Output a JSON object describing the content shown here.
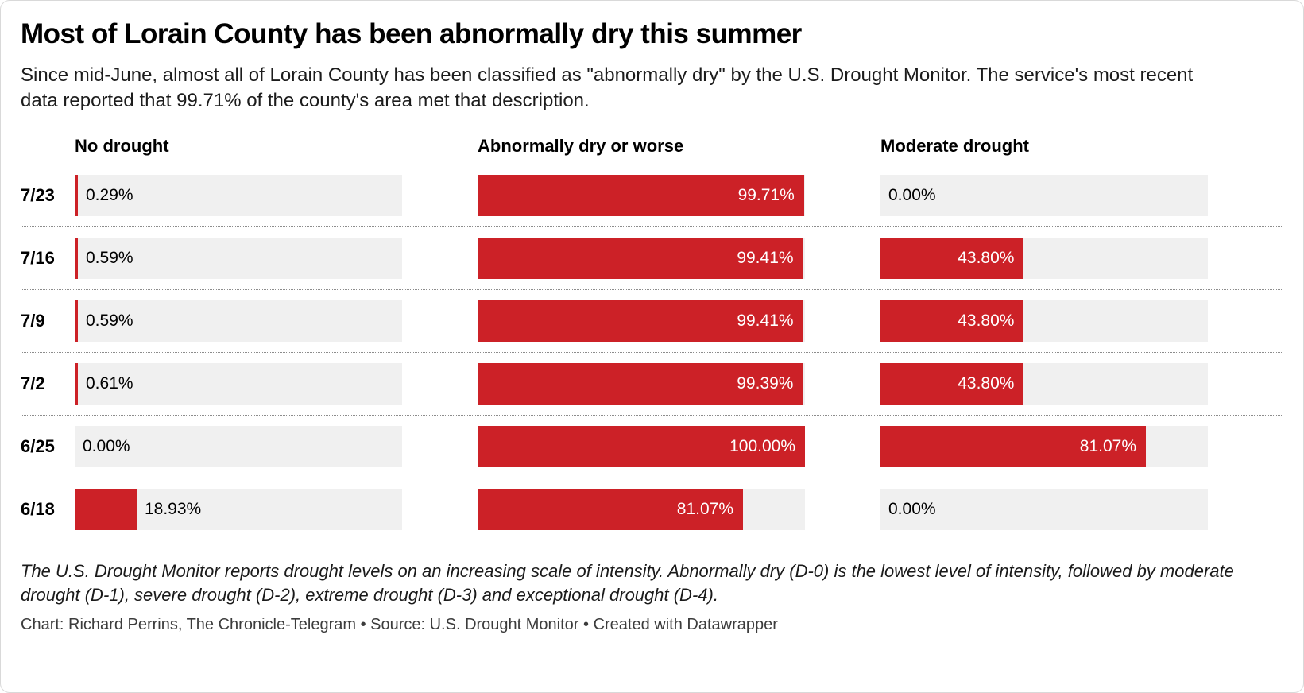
{
  "chart_data": {
    "type": "bar",
    "orientation": "horizontal",
    "layout": "small-multiples, one panel per series, grid off, no axes, value labels on bars",
    "title": "Most of Lorain County has been abnormally dry this summer",
    "subtitle": "Since mid-June, almost all of Lorain County has been classified as \"abnormally dry\" by the U.S. Drought Monitor. The service's most recent data reported that 99.71% of the county's area met that description.",
    "categories": [
      "7/23",
      "7/16",
      "7/9",
      "7/2",
      "6/25",
      "6/18"
    ],
    "series": [
      {
        "name": "No drought",
        "values": [
          0.29,
          0.59,
          0.59,
          0.61,
          0.0,
          18.93
        ],
        "labels": [
          "0.29%",
          "0.59%",
          "0.59%",
          "0.61%",
          "0.00%",
          "18.93%"
        ]
      },
      {
        "name": "Abnormally dry or worse",
        "values": [
          99.71,
          99.41,
          99.41,
          99.39,
          100.0,
          81.07
        ],
        "labels": [
          "99.71%",
          "99.41%",
          "99.41%",
          "99.39%",
          "100.00%",
          "81.07%"
        ]
      },
      {
        "name": "Moderate drought",
        "values": [
          0.0,
          43.8,
          43.8,
          43.8,
          81.07,
          0.0
        ],
        "labels": [
          "0.00%",
          "43.80%",
          "43.80%",
          "43.80%",
          "81.07%",
          "0.00%"
        ]
      }
    ],
    "xlim": [
      0,
      100
    ],
    "bar_color": "#cc2127",
    "track_color": "#f0f0f0",
    "inside_label_threshold": 30
  },
  "footer": {
    "note": "The U.S. Drought Monitor reports drought levels on an increasing scale of intensity. Abnormally dry (D-0) is the lowest level of intensity, followed by moderate drought (D-1), severe drought (D-2), extreme drought (D-3) and exceptional drought (D-4).",
    "credit": "Chart: Richard Perrins, The Chronicle-Telegram • Source: U.S. Drought Monitor • Created with Datawrapper"
  }
}
